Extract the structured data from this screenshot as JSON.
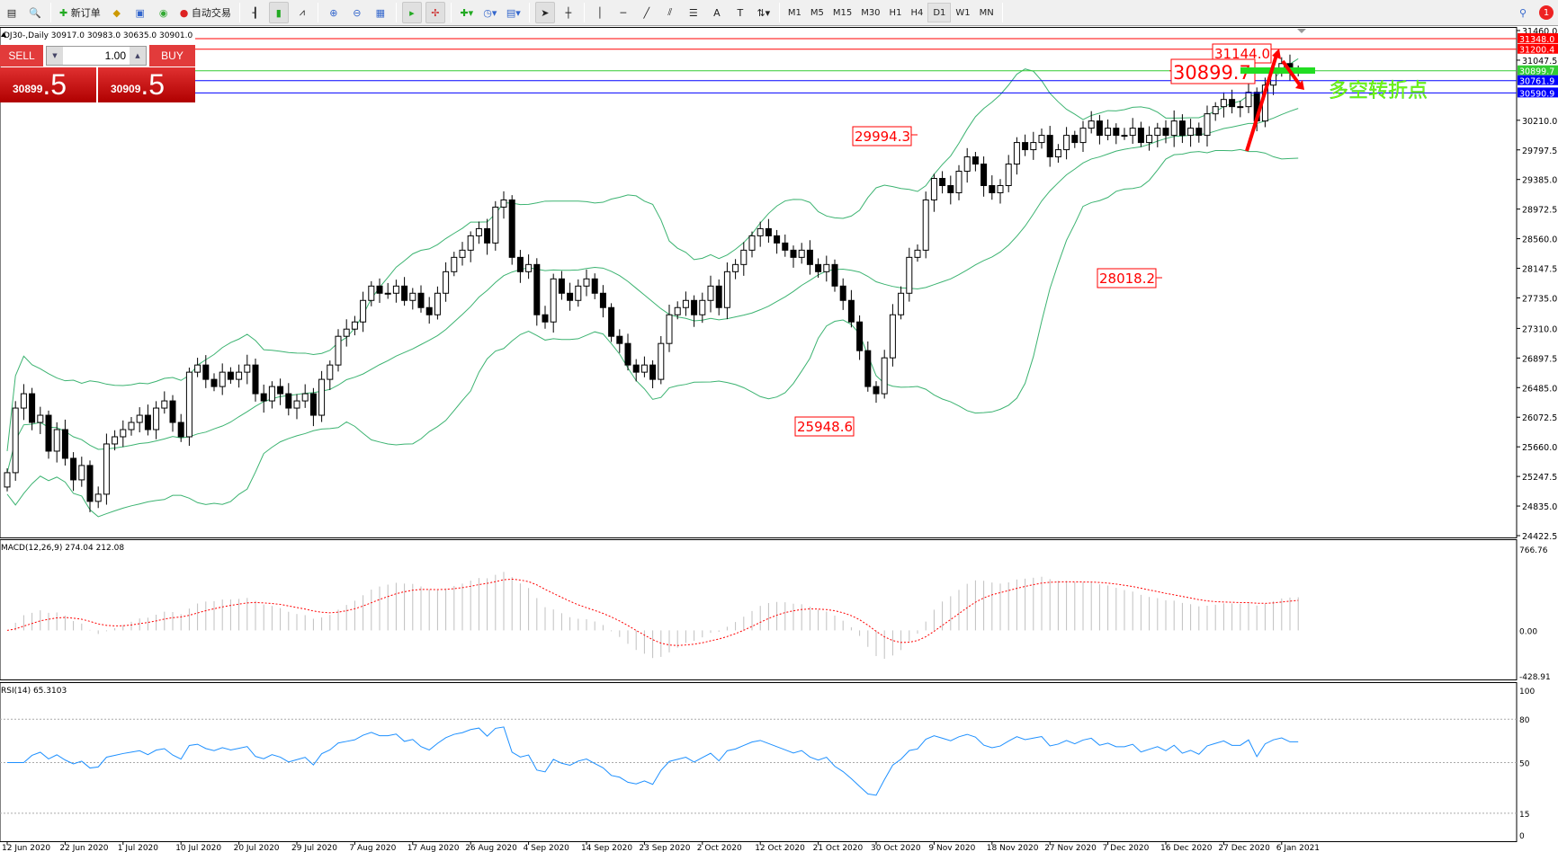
{
  "toolbar": {
    "new_order": "新订单",
    "auto_trading": "自动交易",
    "timeframes": [
      "M1",
      "M5",
      "M15",
      "M30",
      "H1",
      "H4",
      "D1",
      "W1",
      "MN"
    ],
    "active_timeframe": "D1",
    "notification_count": "1"
  },
  "chart": {
    "title": "DJ30-,Daily  30917.0 30983.0 30635.0 30901.0",
    "symbol": "DJ30-",
    "period": "Daily"
  },
  "trade_panel": {
    "sell": "SELL",
    "buy": "BUY",
    "lot": "1.00",
    "bid_main": "30899",
    "bid_pip": ".5",
    "ask_main": "30909",
    "ask_pip": ".5"
  },
  "price_axis": {
    "ticks": [
      "31460.0",
      "31047.5",
      "30210.0",
      "29797.5",
      "29385.0",
      "28972.5",
      "28560.0",
      "28147.5",
      "27735.0",
      "27310.0",
      "26897.5",
      "26485.0",
      "26072.5",
      "25660.0",
      "25247.5",
      "24835.0",
      "24422.5"
    ],
    "range": [
      24422.5,
      31460
    ]
  },
  "levels": [
    {
      "price": 31348.0,
      "label": "31348.0",
      "color": "#ff0000"
    },
    {
      "price": 31200.4,
      "label": "31200.4",
      "color": "#ff0000"
    },
    {
      "price": 30899.7,
      "label": "30899.7",
      "color": "#33cc33"
    },
    {
      "price": 30761.9,
      "label": "30761.9",
      "color": "#0000ff"
    },
    {
      "price": 30590.9,
      "label": "30590.9",
      "color": "#0000ff"
    }
  ],
  "annotations": {
    "labels": [
      "31144.0",
      "30899.7",
      "29994.3",
      "25948.6",
      "28018.2"
    ],
    "turning_point": "多空转折点"
  },
  "macd": {
    "title": "MACD(12,26,9) 274.04 212.08",
    "ticks": [
      "766.76",
      "0.00",
      "-428.91"
    ],
    "range": [
      -428.91,
      766.76
    ]
  },
  "rsi": {
    "title": "RSI(14) 65.3103",
    "ticks": [
      "100",
      "80",
      "50",
      "15",
      "0"
    ],
    "levels": [
      80,
      50,
      15
    ]
  },
  "dates": [
    "12 Jun 2020",
    "22 Jun 2020",
    "1 Jul 2020",
    "10 Jul 2020",
    "20 Jul 2020",
    "29 Jul 2020",
    "7 Aug 2020",
    "17 Aug 2020",
    "26 Aug 2020",
    "4 Sep 2020",
    "14 Sep 2020",
    "23 Sep 2020",
    "2 Oct 2020",
    "12 Oct 2020",
    "21 Oct 2020",
    "30 Oct 2020",
    "9 Nov 2020",
    "18 Nov 2020",
    "27 Nov 2020",
    "7 Dec 2020",
    "16 Dec 2020",
    "27 Dec 2020",
    "6 Jan 2021"
  ],
  "chart_data": {
    "type": "candlestick",
    "bars_per_date_label": 7,
    "indicators": [
      "Bollinger Bands(20,2)",
      "MACD(12,26,9)",
      "RSI(14)"
    ],
    "colors": {
      "bands": "#3cb371",
      "signal": "#ff0000",
      "rsi": "#1e90ff",
      "histogram": "#c0c0c0"
    },
    "close": [
      25300,
      26200,
      26400,
      26000,
      26100,
      25600,
      25900,
      25500,
      25200,
      25400,
      24900,
      25000,
      25700,
      25800,
      25900,
      26000,
      26100,
      25900,
      26200,
      26300,
      26000,
      25800,
      26700,
      26800,
      26600,
      26500,
      26700,
      26600,
      26700,
      26800,
      26400,
      26300,
      26500,
      26400,
      26200,
      26300,
      26400,
      26100,
      26600,
      26800,
      27200,
      27300,
      27400,
      27700,
      27900,
      27800,
      27800,
      27900,
      27700,
      27800,
      27600,
      27500,
      27800,
      28100,
      28300,
      28400,
      28600,
      28700,
      28500,
      29000,
      29100,
      28300,
      28100,
      28200,
      27500,
      27400,
      28000,
      27800,
      27700,
      27900,
      28000,
      27800,
      27600,
      27200,
      27100,
      26800,
      26700,
      26800,
      26600,
      27100,
      27500,
      27600,
      27700,
      27500,
      27700,
      27900,
      27600,
      28100,
      28200,
      28400,
      28600,
      28700,
      28600,
      28500,
      28400,
      28300,
      28400,
      28200,
      28100,
      28200,
      27900,
      27700,
      27400,
      27000,
      26500,
      26400,
      26900,
      27500,
      27800,
      28300,
      28400,
      29100,
      29400,
      29300,
      29200,
      29500,
      29700,
      29600,
      29300,
      29200,
      29300,
      29600,
      29900,
      29800,
      29900,
      30000,
      29700,
      29800,
      30000,
      29900,
      30100,
      30200,
      30000,
      30100,
      30000,
      30000,
      30100,
      29900,
      30000,
      30100,
      30000,
      30200,
      30000,
      30100,
      30000,
      30300,
      30400,
      30500,
      30400,
      30400,
      30600,
      30200,
      30700,
      30900,
      31000,
      30900,
      30901
    ]
  }
}
